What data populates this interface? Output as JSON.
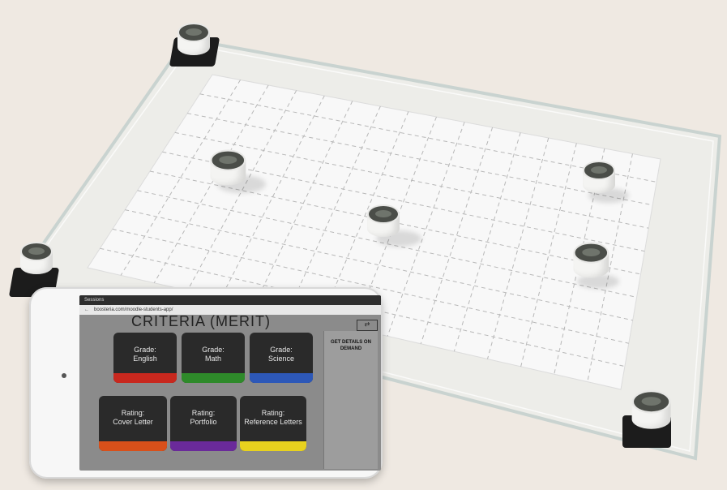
{
  "tablet": {
    "browser_tab": "Sessions",
    "url": "boosteria.com/moodle-students-app/",
    "screen_title": "CRITERIA (MERIT)",
    "side_panel_label": "GET DETAILS ON DEMAND",
    "expand_glyph": "⇄",
    "tiles": [
      {
        "line1": "Grade:",
        "line2": "English",
        "color": "#c8281e"
      },
      {
        "line1": "Grade:",
        "line2": "Math",
        "color": "#2e8a2a"
      },
      {
        "line1": "Grade:",
        "line2": "Science",
        "color": "#2d58b8"
      },
      {
        "line1": "Rating:",
        "line2": "Cover Letter",
        "color": "#d8501a"
      },
      {
        "line1": "Rating:",
        "line2": "Portfolio",
        "color": "#6a2a9a"
      },
      {
        "line1": "Rating:",
        "line2": "Reference Letters",
        "color": "#e8d21e"
      }
    ]
  },
  "scene_colors": {
    "table": "#efe9e2",
    "paper": "#f8f8f8",
    "grid_dash": "#b8b8b8",
    "acrylic_edge": "#cfd8d6"
  }
}
